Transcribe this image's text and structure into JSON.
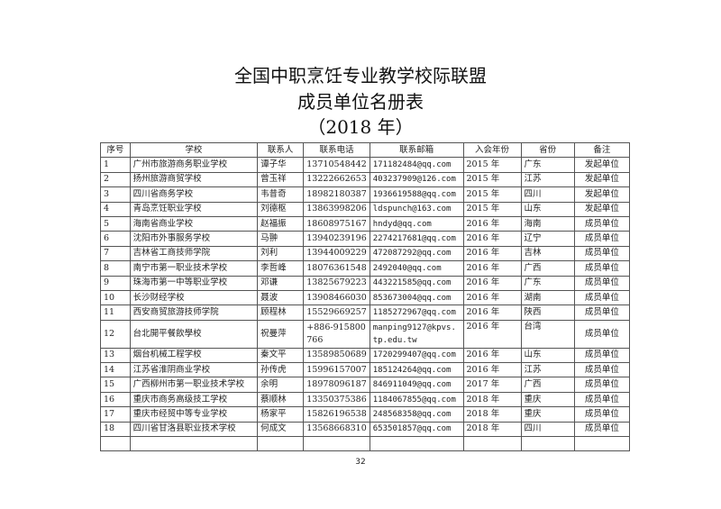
{
  "title": {
    "line1": "全国中职烹饪专业教学校际联盟",
    "line2": "成员单位名册表",
    "line3": "（2018 年）"
  },
  "table": {
    "headers": [
      "序号",
      "学校",
      "联系人",
      "联系电话",
      "联系邮箱",
      "入会年份",
      "省份",
      "备注"
    ],
    "rows": [
      [
        "1",
        "广州市旅游商务职业学校",
        "谭子华",
        "13710548442",
        "171182484@qq.com",
        "2015 年",
        "广东",
        "发起单位"
      ],
      [
        "2",
        "扬州旅游商贸学校",
        "曾玉祥",
        "13222662653",
        "403237909@126.com",
        "2015 年",
        "江苏",
        "发起单位"
      ],
      [
        "3",
        "四川省商务学校",
        "韦昔奇",
        "18982180387",
        "1936619588@qq.com",
        "2015 年",
        "四川",
        "发起单位"
      ],
      [
        "4",
        "青岛烹饪职业学校",
        "刘德枢",
        "13863998206",
        "ldspunch@163.com",
        "2015 年",
        "山东",
        "发起单位"
      ],
      [
        "5",
        "海南省商业学校",
        "赵福振",
        "18608975167",
        "hndyd@qq.com",
        "2016 年",
        "海南",
        "成员单位"
      ],
      [
        "6",
        "沈阳市外事服务学校",
        "马翀",
        "13940239196",
        "2274217681@qq.com",
        "2016 年",
        "辽宁",
        "成员单位"
      ],
      [
        "7",
        "吉林省工商技师学院",
        "刘利",
        "13944009229",
        "472087292@qq.com",
        "2016 年",
        "吉林",
        "成员单位"
      ],
      [
        "8",
        "南宁市第一职业技术学校",
        "李哲峰",
        "18076361548",
        "2492040@qq.com",
        "2016 年",
        "广西",
        "成员单位"
      ],
      [
        "9",
        "珠海市第一中等职业学校",
        "邓谦",
        "13825679223",
        "443221585@qq.com",
        "2016 年",
        "广东",
        "成员单位"
      ],
      [
        "10",
        "长沙财经学校",
        "聂波",
        "13908466030",
        "853673004@qq.com",
        "2016 年",
        "湖南",
        "成员单位"
      ],
      [
        "11",
        "西安商贸旅游技师学院",
        "顾程林",
        "15529669257",
        "1185272967@qq.com",
        "2016 年",
        "陕西",
        "成员单位"
      ],
      [
        "12",
        "台北開平餐飲學校",
        "祝曼萍",
        "+886-915800766",
        "manping9127@kpvs.tp.edu.tw",
        "2016 年",
        "台湾",
        "成员单位"
      ],
      [
        "13",
        "烟台机械工程学校",
        "秦文平",
        "13589850689",
        "1720299407@qq.com",
        "2016 年",
        "山东",
        "成员单位"
      ],
      [
        "14",
        "江苏省淮阴商业学校",
        "孙传虎",
        "15996157007",
        "185124264@qq.com",
        "2016 年",
        "江苏",
        "成员单位"
      ],
      [
        "15",
        "广西柳州市第一职业技术学校",
        "余明",
        "18978096187",
        "846911049@qq.com",
        "2017 年",
        "广西",
        "成员单位"
      ],
      [
        "16",
        "重庆市商务高级技工学校",
        "蔡顺林",
        "13350375386",
        "1184067855@qq.com",
        "2018 年",
        "重庆",
        "成员单位"
      ],
      [
        "17",
        "重庆市经贸中等专业学校",
        "杨家平",
        "15826196538",
        "248568358@qq.com",
        "2018 年",
        "重庆",
        "成员单位"
      ],
      [
        "18",
        "四川省甘洛县职业技术学校",
        "何成文",
        "13568668310",
        "653501857@qq.com",
        "2018 年",
        "四川",
        "成员单位"
      ]
    ]
  },
  "page_number": "32"
}
